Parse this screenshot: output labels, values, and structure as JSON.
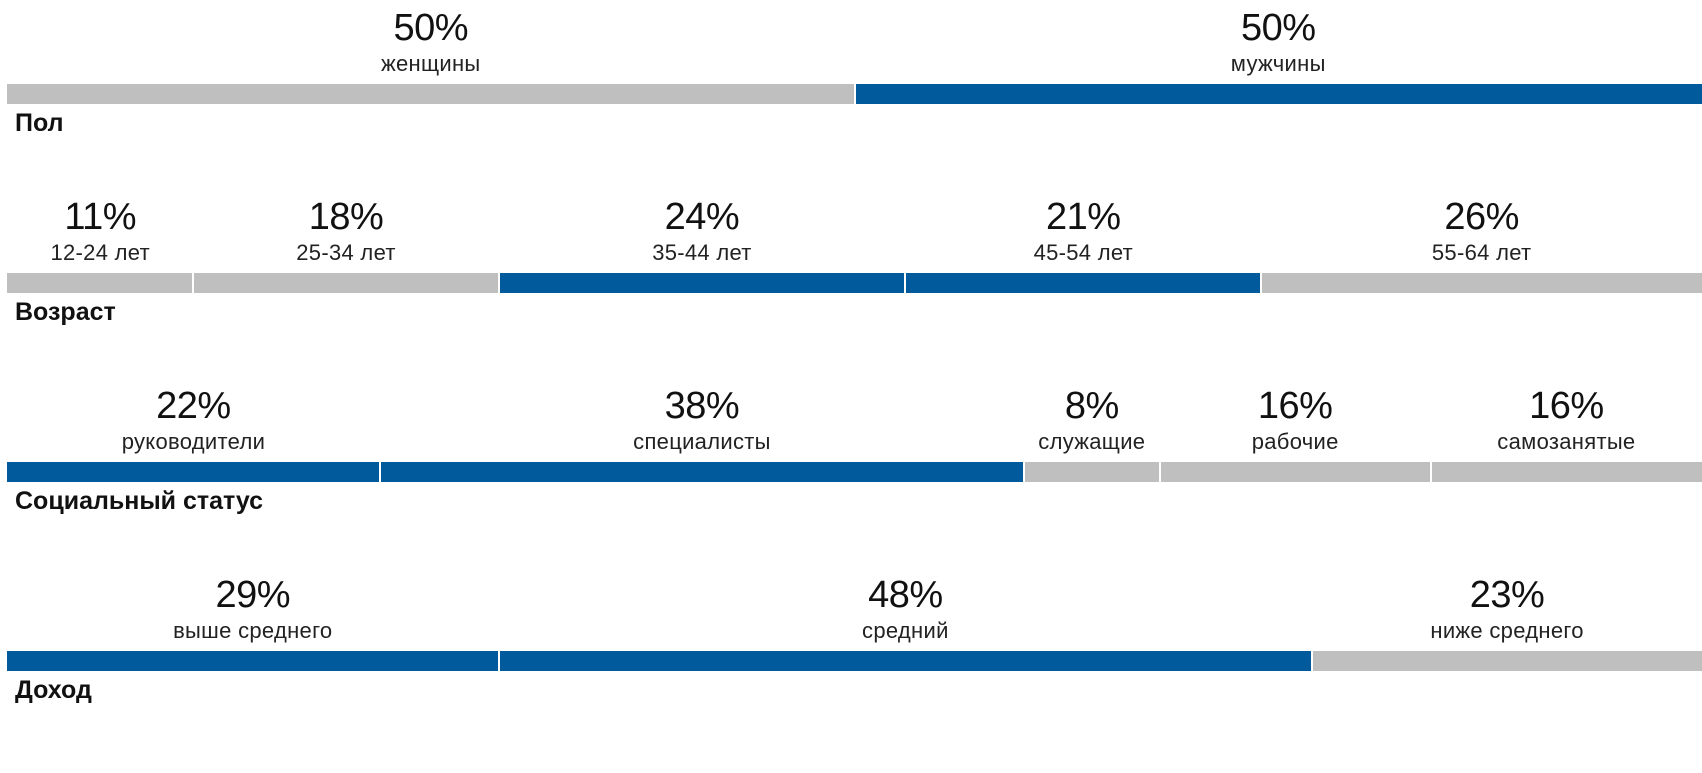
{
  "colors": {
    "highlight": "#005a9c",
    "base": "#bfbfbf"
  },
  "chart_data": [
    {
      "type": "bar",
      "orientation": "horizontal-stacked-100",
      "title": "Пол",
      "categories": [
        "женщины",
        "мужчины"
      ],
      "values": [
        50,
        50
      ],
      "value_labels": [
        "50%",
        "50%"
      ],
      "highlighted": [
        false,
        true
      ]
    },
    {
      "type": "bar",
      "orientation": "horizontal-stacked-100",
      "title": "Возраст",
      "categories": [
        "12-24 лет",
        "25-34 лет",
        "35-44 лет",
        "45-54 лет",
        "55-64 лет"
      ],
      "values": [
        11,
        18,
        24,
        21,
        26
      ],
      "value_labels": [
        "11%",
        "18%",
        "24%",
        "21%",
        "26%"
      ],
      "highlighted": [
        false,
        false,
        true,
        true,
        false
      ]
    },
    {
      "type": "bar",
      "orientation": "horizontal-stacked-100",
      "title": "Социальный статус",
      "categories": [
        "руководители",
        "специалисты",
        "служащие",
        "рабочие",
        "самозанятые"
      ],
      "values": [
        22,
        38,
        8,
        16,
        16
      ],
      "value_labels": [
        "22%",
        "38%",
        "8%",
        "16%",
        "16%"
      ],
      "highlighted": [
        true,
        true,
        false,
        false,
        false
      ]
    },
    {
      "type": "bar",
      "orientation": "horizontal-stacked-100",
      "title": "Доход",
      "categories": [
        "выше среднего",
        "средний",
        "ниже среднего"
      ],
      "values": [
        29,
        48,
        23
      ],
      "value_labels": [
        "29%",
        "48%",
        "23%"
      ],
      "highlighted": [
        true,
        true,
        false
      ]
    }
  ]
}
